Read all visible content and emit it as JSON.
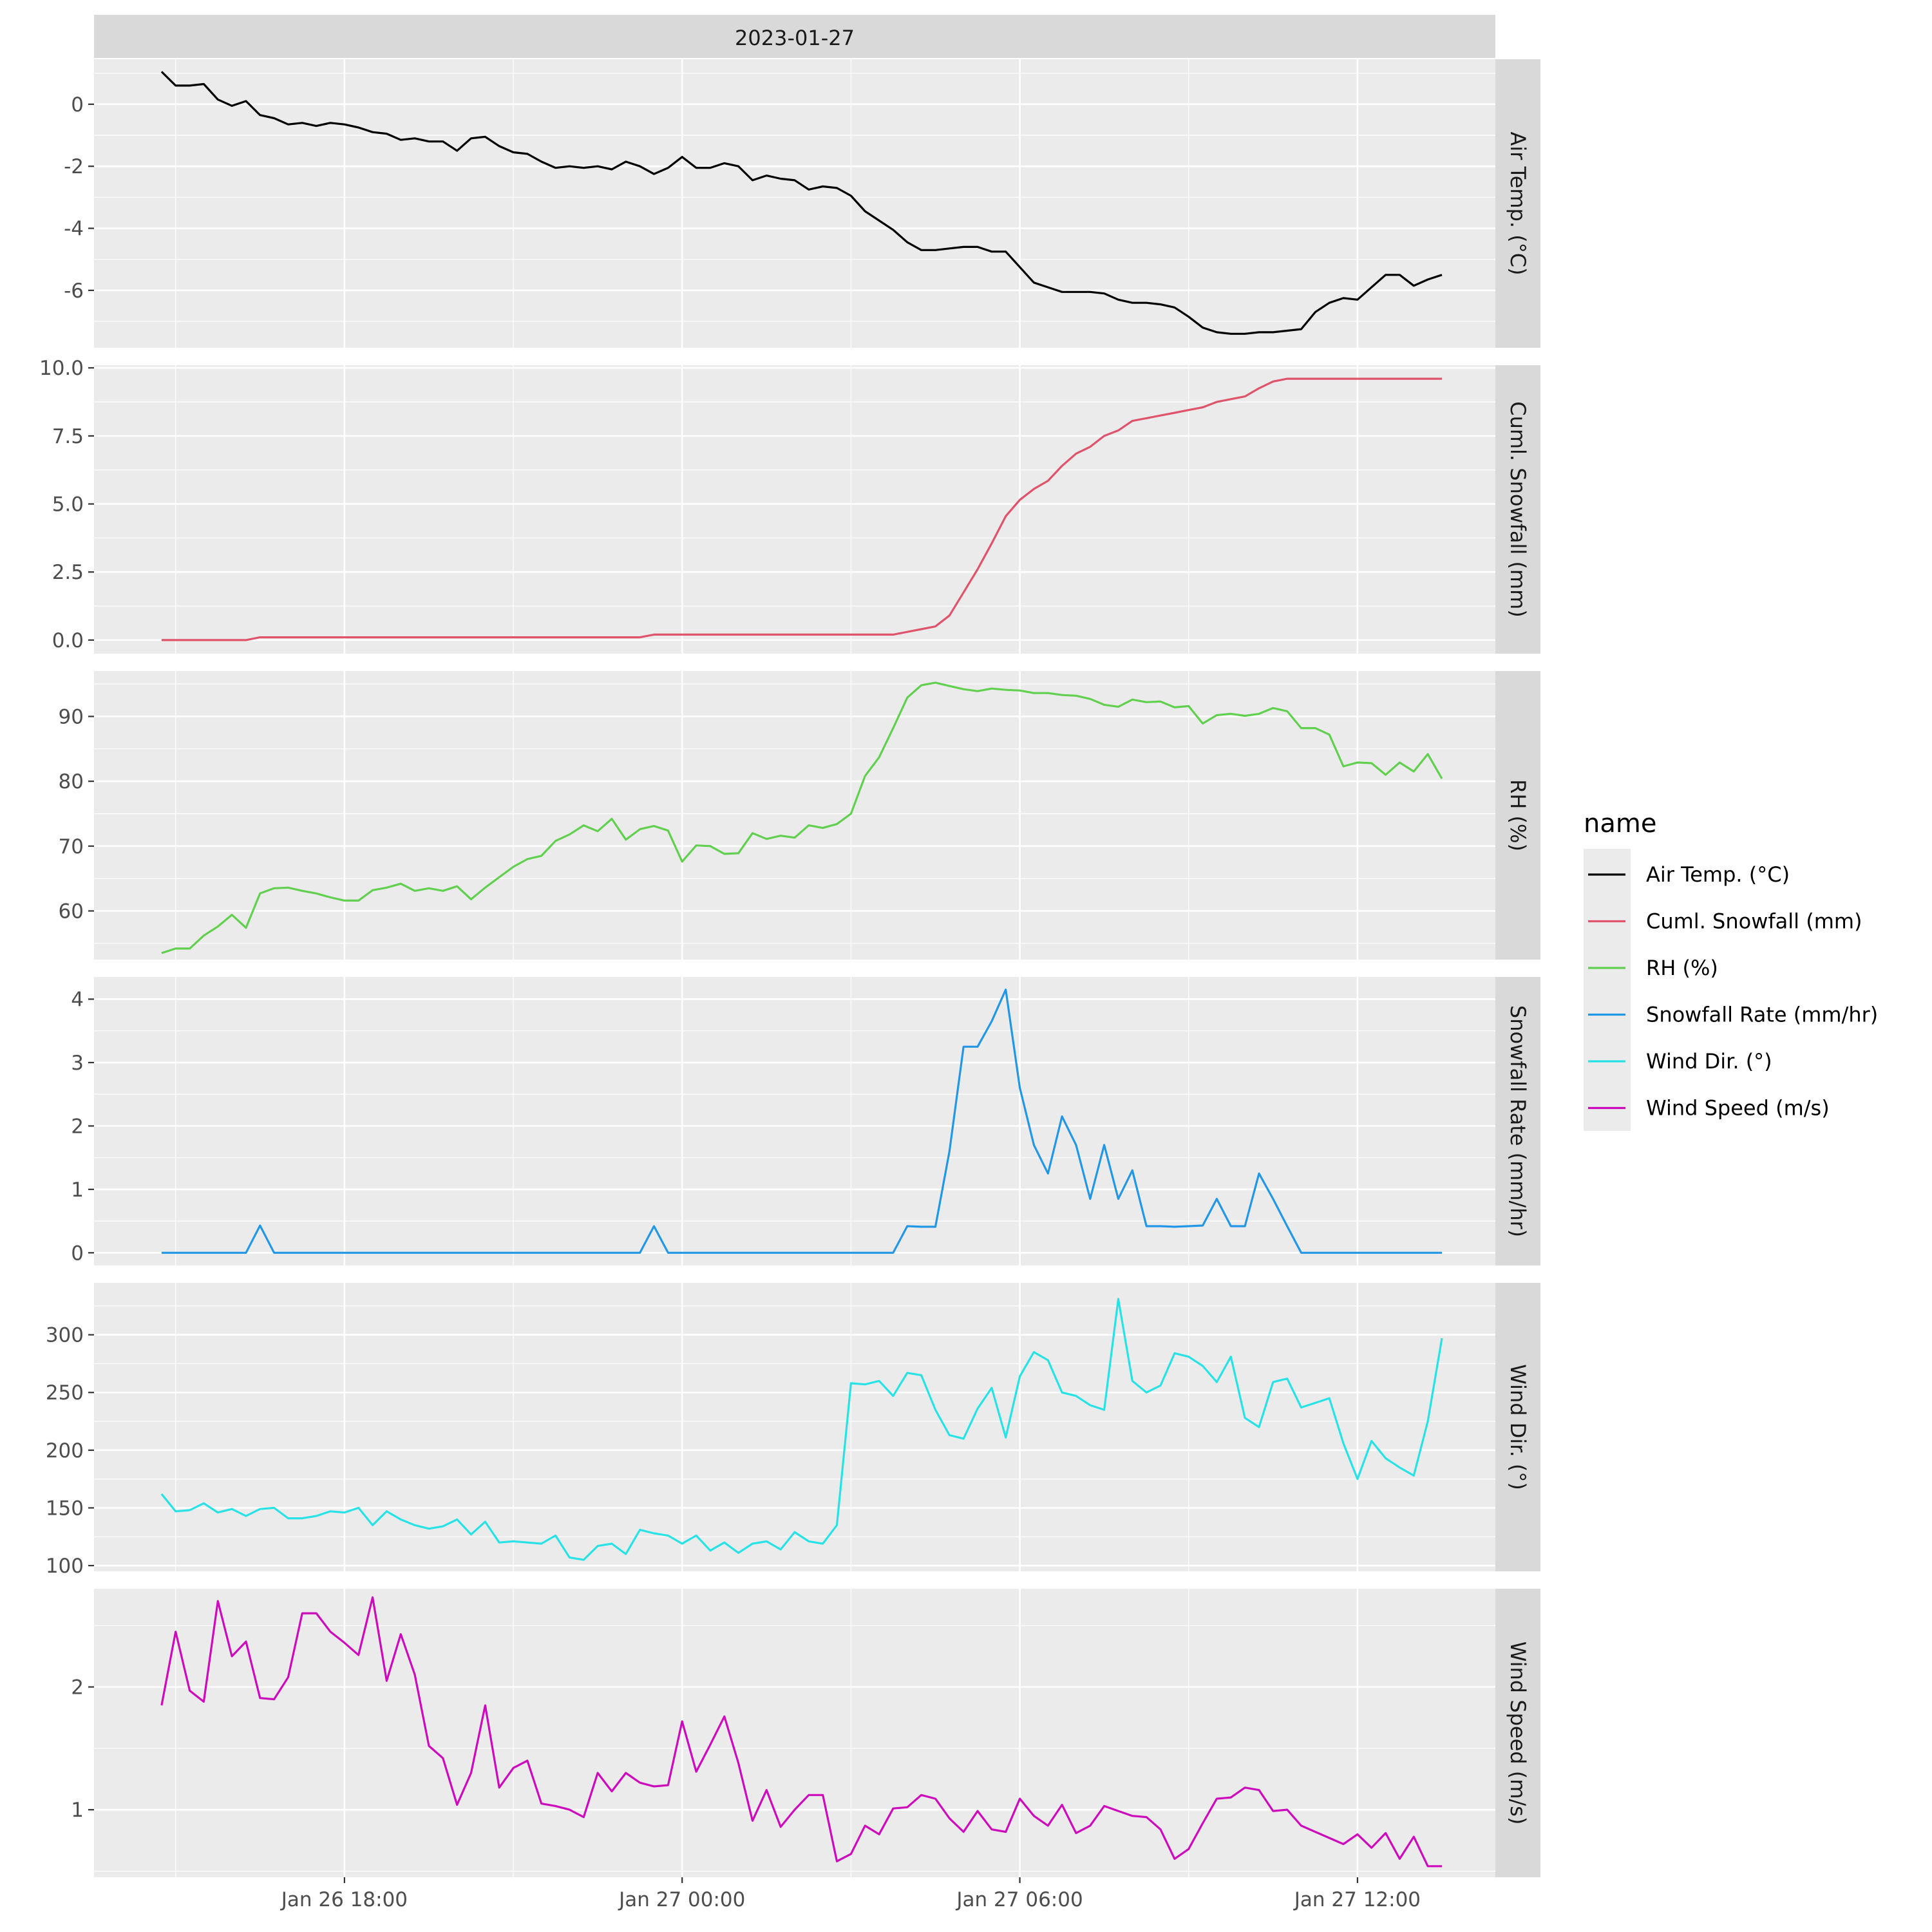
{
  "chart_data": {
    "type": "line",
    "facet_title": "2023-01-27",
    "legend": {
      "title": "name",
      "placement": "right",
      "entries": [
        "Air Temp. (°C)",
        "Cuml. Snowfall (mm)",
        "RH (%)",
        "Snowfall Rate (mm/hr)",
        "Wind Dir. (°)",
        "Wind Speed (m/s)"
      ]
    },
    "x_axis": {
      "tick_labels": [
        "Jan 26 18:00",
        "Jan 27 00:00",
        "Jan 27 06:00",
        "Jan 27 12:00"
      ],
      "tick_hours": [
        18,
        24,
        30,
        36
      ],
      "range_hours": [
        13.55,
        38.45
      ],
      "x_start_hours": 14.75,
      "x_step_hours": 0.25
    },
    "panels": [
      {
        "name": "Air Temp. (°C)",
        "color": "#000000",
        "ylim": [
          -7.85,
          1.45
        ],
        "yticks": [
          0,
          -2,
          -4,
          -6
        ],
        "ytick_labels": [
          "0",
          "-2",
          "-4",
          "-6"
        ],
        "values": [
          1.05,
          0.6,
          0.6,
          0.65,
          0.15,
          -0.05,
          0.1,
          -0.35,
          -0.45,
          -0.65,
          -0.6,
          -0.7,
          -0.6,
          -0.65,
          -0.75,
          -0.9,
          -0.95,
          -1.15,
          -1.1,
          -1.2,
          -1.2,
          -1.5,
          -1.1,
          -1.05,
          -1.35,
          -1.55,
          -1.6,
          -1.85,
          -2.05,
          -2.0,
          -2.05,
          -2.0,
          -2.1,
          -1.85,
          -2.0,
          -2.25,
          -2.05,
          -1.7,
          -2.05,
          -2.05,
          -1.9,
          -2.0,
          -2.45,
          -2.3,
          -2.4,
          -2.45,
          -2.75,
          -2.65,
          -2.7,
          -2.95,
          -3.45,
          -3.75,
          -4.05,
          -4.45,
          -4.7,
          -4.7,
          -4.65,
          -4.6,
          -4.6,
          -4.75,
          -4.75,
          -5.25,
          -5.75,
          -5.9,
          -6.05,
          -6.05,
          -6.05,
          -6.1,
          -6.3,
          -6.4,
          -6.4,
          -6.45,
          -6.55,
          -6.85,
          -7.2,
          -7.35,
          -7.4,
          -7.4,
          -7.35,
          -7.35,
          -7.3,
          -7.25,
          -6.7,
          -6.4,
          -6.25,
          -6.3,
          -5.9,
          -5.5,
          -5.5,
          -5.85,
          -5.65,
          -5.5
        ]
      },
      {
        "name": "Cuml. Snowfall (mm)",
        "color": "#DF536B",
        "ylim": [
          -0.5,
          10.1
        ],
        "yticks": [
          0.0,
          2.5,
          5.0,
          7.5,
          10.0
        ],
        "ytick_labels": [
          "0.0",
          "2.5",
          "5.0",
          "7.5",
          "10.0"
        ],
        "values": [
          0,
          0,
          0,
          0,
          0,
          0,
          0,
          0.1,
          0.1,
          0.1,
          0.1,
          0.1,
          0.1,
          0.1,
          0.1,
          0.1,
          0.1,
          0.1,
          0.1,
          0.1,
          0.1,
          0.1,
          0.1,
          0.1,
          0.1,
          0.1,
          0.1,
          0.1,
          0.1,
          0.1,
          0.1,
          0.1,
          0.1,
          0.1,
          0.1,
          0.2,
          0.2,
          0.2,
          0.2,
          0.2,
          0.2,
          0.2,
          0.2,
          0.2,
          0.2,
          0.2,
          0.2,
          0.2,
          0.2,
          0.2,
          0.2,
          0.2,
          0.2,
          0.3,
          0.4,
          0.5,
          0.9,
          1.75,
          2.6,
          3.55,
          4.55,
          5.15,
          5.55,
          5.85,
          6.4,
          6.85,
          7.1,
          7.5,
          7.7,
          8.05,
          8.15,
          8.25,
          8.35,
          8.45,
          8.55,
          8.75,
          8.85,
          8.95,
          9.25,
          9.5,
          9.6,
          9.6,
          9.6,
          9.6,
          9.6,
          9.6,
          9.6,
          9.6,
          9.6,
          9.6,
          9.6,
          9.6
        ]
      },
      {
        "name": "RH (%)",
        "color": "#61D04F",
        "ylim": [
          52.5,
          97.0
        ],
        "yticks": [
          60,
          70,
          80,
          90
        ],
        "ytick_labels": [
          "60",
          "70",
          "80",
          "90"
        ],
        "values": [
          53.5,
          54.2,
          54.2,
          56.2,
          57.6,
          59.4,
          57.4,
          62.7,
          63.5,
          63.6,
          63.1,
          62.7,
          62.1,
          61.6,
          61.6,
          63.2,
          63.6,
          64.2,
          63.1,
          63.5,
          63.1,
          63.8,
          61.8,
          63.6,
          65.2,
          66.8,
          68.0,
          68.5,
          70.8,
          71.8,
          73.2,
          72.3,
          74.2,
          71.0,
          72.6,
          73.1,
          72.4,
          67.6,
          70.1,
          70.0,
          68.8,
          68.9,
          72.0,
          71.1,
          71.6,
          71.3,
          73.2,
          72.8,
          73.4,
          75.0,
          80.8,
          83.7,
          88.2,
          92.9,
          94.8,
          95.2,
          94.7,
          94.2,
          93.9,
          94.3,
          94.1,
          94.0,
          93.6,
          93.6,
          93.3,
          93.2,
          92.7,
          91.8,
          91.5,
          92.6,
          92.2,
          92.3,
          91.4,
          91.6,
          88.9,
          90.2,
          90.4,
          90.1,
          90.4,
          91.3,
          90.8,
          88.2,
          88.2,
          87.2,
          82.3,
          82.9,
          82.8,
          81.0,
          82.9,
          81.5,
          84.2,
          80.4
        ]
      },
      {
        "name": "Snowfall Rate (mm/hr)",
        "color": "#2297E6",
        "ylim": [
          -0.2,
          4.35
        ],
        "yticks": [
          0,
          1,
          2,
          3,
          4
        ],
        "ytick_labels": [
          "0",
          "1",
          "2",
          "3",
          "4"
        ],
        "values": [
          0,
          0,
          0,
          0,
          0,
          0,
          0,
          0.43,
          0,
          0,
          0,
          0,
          0,
          0,
          0,
          0,
          0,
          0,
          0,
          0,
          0,
          0,
          0,
          0,
          0,
          0,
          0,
          0,
          0,
          0,
          0,
          0,
          0,
          0,
          0,
          0.42,
          0,
          0,
          0,
          0,
          0,
          0,
          0,
          0,
          0,
          0,
          0,
          0,
          0,
          0,
          0,
          0,
          0,
          0.42,
          0.41,
          0.41,
          1.6,
          3.25,
          3.25,
          3.65,
          4.15,
          2.6,
          1.7,
          1.25,
          2.15,
          1.7,
          0.85,
          1.7,
          0.85,
          1.3,
          0.42,
          0.42,
          0.41,
          0.42,
          0.43,
          0.85,
          0.42,
          0.42,
          1.25,
          0.85,
          0.42,
          0,
          0,
          0,
          0,
          0,
          0,
          0,
          0,
          0,
          0,
          0
        ]
      },
      {
        "name": "Wind Dir. (°)",
        "color": "#28E2E5",
        "ylim": [
          95,
          345
        ],
        "yticks": [
          100,
          150,
          200,
          250,
          300
        ],
        "ytick_labels": [
          "100",
          "150",
          "200",
          "250",
          "300"
        ],
        "values": [
          162,
          147,
          148,
          154,
          146,
          149,
          143,
          149,
          150,
          141,
          141,
          143,
          147,
          146,
          150,
          135,
          147,
          140,
          135,
          132,
          134,
          140,
          127,
          138,
          120,
          121,
          120,
          119,
          126,
          107,
          105,
          117,
          119,
          110,
          131,
          128,
          126,
          119,
          126,
          113,
          120,
          111,
          119,
          121,
          114,
          129,
          121,
          119,
          135,
          258,
          257,
          260,
          247,
          267,
          265,
          235,
          213,
          210,
          236,
          254,
          211,
          264,
          285,
          278,
          250,
          247,
          239,
          235,
          331,
          260,
          250,
          256,
          284,
          281,
          273,
          259,
          281,
          228,
          220,
          259,
          262,
          237,
          241,
          245,
          206,
          175,
          208,
          193,
          185,
          178,
          225,
          297
        ]
      },
      {
        "name": "Wind Speed (m/s)",
        "color": "#CD0BBC",
        "ylim": [
          0.45,
          2.8
        ],
        "yticks": [
          1,
          2
        ],
        "ytick_labels": [
          "1",
          "2"
        ],
        "values": [
          1.85,
          2.45,
          1.97,
          1.88,
          2.7,
          2.25,
          2.37,
          1.91,
          1.9,
          2.08,
          2.6,
          2.6,
          2.45,
          2.36,
          2.26,
          2.73,
          2.05,
          2.43,
          2.1,
          1.52,
          1.42,
          1.04,
          1.3,
          1.85,
          1.18,
          1.34,
          1.4,
          1.05,
          1.03,
          1.0,
          0.94,
          1.3,
          1.15,
          1.3,
          1.22,
          1.19,
          1.2,
          1.72,
          1.31,
          1.53,
          1.76,
          1.38,
          0.91,
          1.16,
          0.86,
          1.0,
          1.12,
          1.12,
          0.58,
          0.64,
          0.87,
          0.8,
          1.01,
          1.02,
          1.12,
          1.09,
          0.93,
          0.82,
          0.99,
          0.84,
          0.82,
          1.09,
          0.95,
          0.87,
          1.04,
          0.81,
          0.87,
          1.03,
          0.99,
          0.95,
          0.94,
          0.84,
          0.6,
          0.68,
          0.89,
          1.09,
          1.1,
          1.18,
          1.16,
          0.99,
          1.0,
          0.87,
          0.82,
          0.77,
          0.72,
          0.8,
          0.69,
          0.81,
          0.6,
          0.78,
          0.54,
          0.54
        ]
      }
    ]
  }
}
